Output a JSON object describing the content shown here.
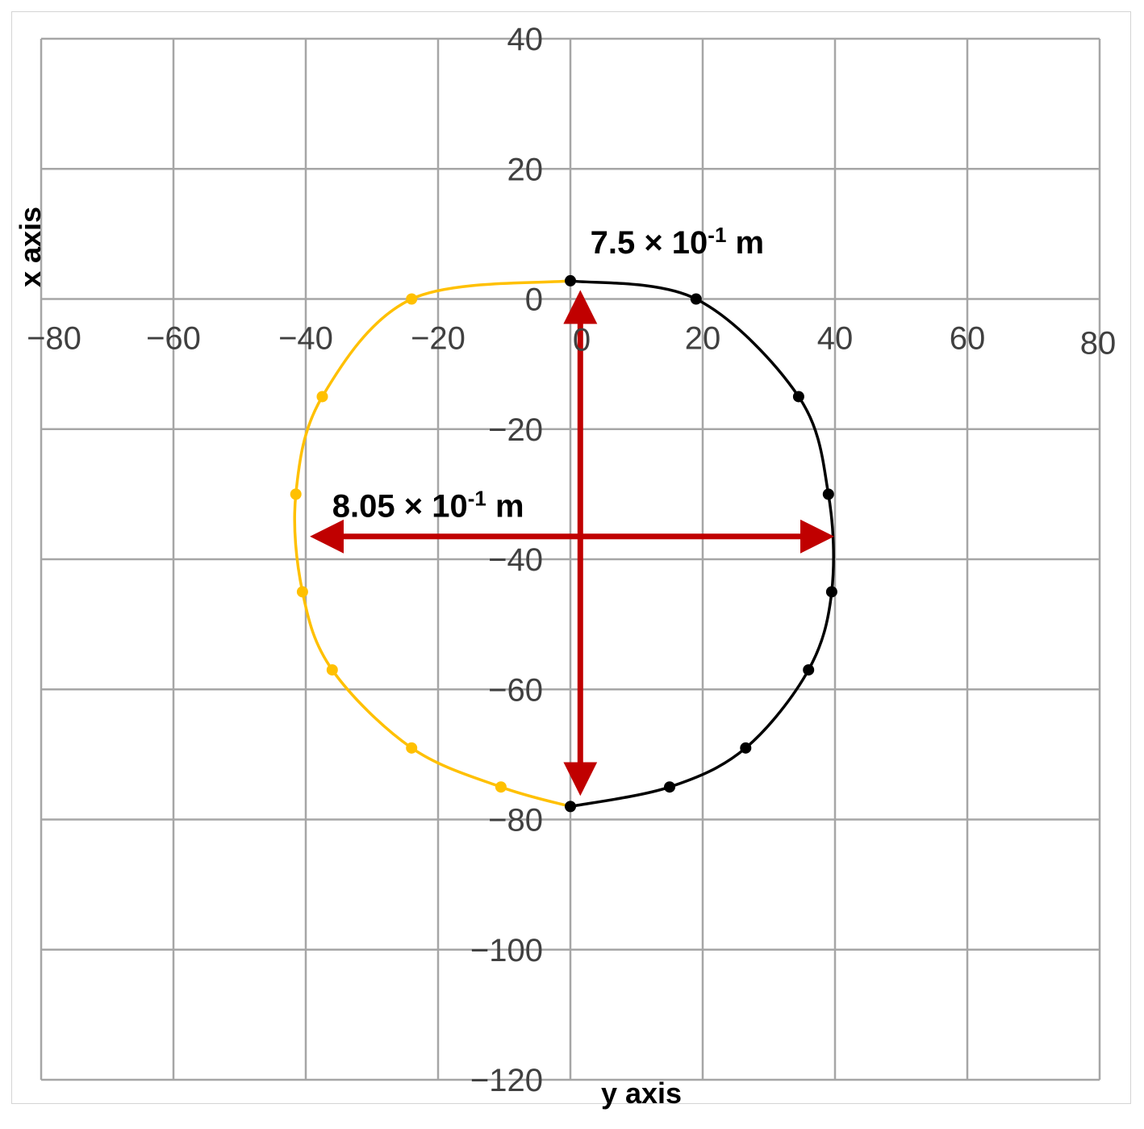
{
  "chart_data": {
    "type": "scatter",
    "xlabel": "y axis",
    "ylabel": "x axis",
    "xlim": [
      -80,
      80
    ],
    "ylim": [
      -120,
      40
    ],
    "x_ticks": [
      "−80",
      "−60",
      "−40",
      "−20",
      "0",
      "20",
      "40",
      "60",
      "80"
    ],
    "y_ticks": [
      "40",
      "20",
      "0",
      "−20",
      "−40",
      "−60",
      "−80",
      "−100",
      "−120"
    ],
    "grid": true,
    "smooth_lines": true,
    "series": [
      {
        "color": "#000000",
        "points": [
          [
            0,
            2.8
          ],
          [
            19,
            0
          ],
          [
            34.5,
            -15
          ],
          [
            39,
            -30
          ],
          [
            39.5,
            -45
          ],
          [
            36,
            -57
          ],
          [
            26.5,
            -69
          ],
          [
            15,
            -75
          ],
          [
            0,
            -78
          ]
        ]
      },
      {
        "color": "#FFC000",
        "points": [
          [
            0,
            2.8
          ],
          [
            -24,
            0
          ],
          [
            -37.5,
            -15
          ],
          [
            -41.5,
            -30
          ],
          [
            -40.5,
            -45
          ],
          [
            -36,
            -57
          ],
          [
            -24,
            -69
          ],
          [
            -10.5,
            -75
          ],
          [
            0,
            -78
          ]
        ]
      }
    ],
    "arrows": {
      "color": "#C00000",
      "horizontal": {
        "from": [
          -39.5,
          -36.5
        ],
        "to": [
          40,
          -36.5
        ]
      },
      "vertical": {
        "from": [
          1.5,
          1.5
        ],
        "to": [
          1.5,
          -76.5
        ]
      }
    },
    "annotations": {
      "vertical": {
        "base": "7.5 × 10",
        "exp": "-1",
        "unit": " m",
        "at": [
          3,
          7
        ]
      },
      "horizontal": {
        "base": "8.05 × 10",
        "exp": "-1",
        "unit": " m",
        "at": [
          -36,
          -33.5
        ]
      }
    }
  }
}
